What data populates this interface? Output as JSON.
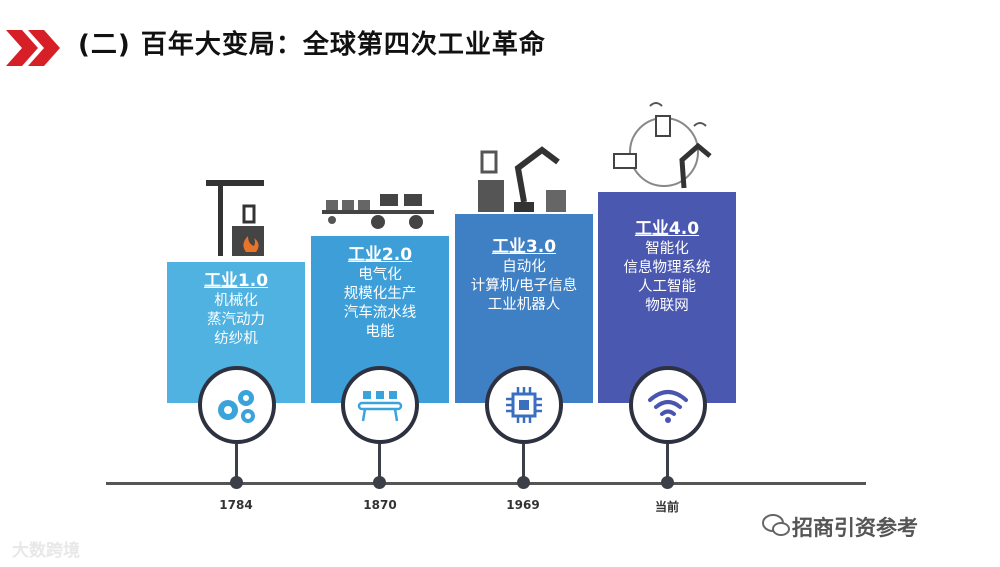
{
  "header": {
    "title": "(二) 百年大变局：全球第四次工业革命"
  },
  "stages": [
    {
      "title": "工业1.0",
      "lines": [
        "机械化",
        "蒸汽动力",
        "纺纱机"
      ],
      "year": "1784",
      "color": "#4fb2e0",
      "icon": "gears-icon"
    },
    {
      "title": "工业2.0",
      "lines": [
        "电气化",
        "规模化生产",
        "汽车流水线",
        "电能"
      ],
      "year": "1870",
      "color": "#3e9fd8",
      "icon": "assembly-line-icon"
    },
    {
      "title": "工业3.0",
      "lines": [
        "自动化",
        "计算机/电子信息",
        "工业机器人"
      ],
      "year": "1969",
      "color": "#3f7fc4",
      "icon": "chip-icon"
    },
    {
      "title": "工业4.0",
      "lines": [
        "智能化",
        "信息物理系统",
        "人工智能",
        "物联网"
      ],
      "year": "当前",
      "color": "#4b58b0",
      "icon": "wifi-icon"
    }
  ],
  "footer": {
    "left_watermark": "大数跨境",
    "right_watermark": "招商引资参考"
  }
}
